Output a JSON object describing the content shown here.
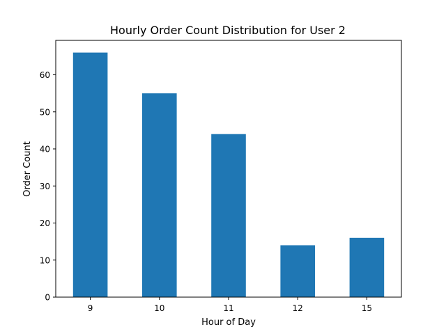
{
  "chart_data": {
    "type": "bar",
    "title": "Hourly Order Count Distribution for User 2",
    "xlabel": "Hour of Day",
    "ylabel": "Order Count",
    "categories": [
      "9",
      "10",
      "11",
      "12",
      "15"
    ],
    "values": [
      66,
      55,
      44,
      14,
      16
    ],
    "ylim": [
      0,
      69.3
    ],
    "yticks": [
      0,
      10,
      20,
      30,
      40,
      50,
      60
    ],
    "grid": false,
    "legend": false,
    "bar_color": "#1f77b4"
  }
}
